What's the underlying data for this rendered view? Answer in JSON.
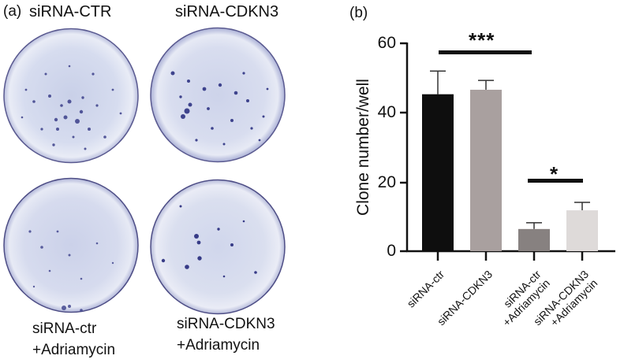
{
  "panel_a": {
    "label": "(a)",
    "plates": [
      {
        "label": "siRNA-CTR",
        "label_line2": "",
        "colony_density": "high"
      },
      {
        "label": "siRNA-CDKN3",
        "label_line2": "",
        "colony_density": "high"
      },
      {
        "label": "siRNA-ctr",
        "label_line2": "+Adriamycin",
        "colony_density": "low"
      },
      {
        "label": "siRNA-CDKN3",
        "label_line2": "+Adriamycin",
        "colony_density": "low"
      }
    ]
  },
  "panel_b": {
    "label": "(b)"
  },
  "chart_data": {
    "type": "bar",
    "title": "",
    "xlabel": "",
    "ylabel": "Clone number/well",
    "ylim": [
      0,
      60
    ],
    "yticks": [
      0,
      20,
      40,
      60
    ],
    "grid": false,
    "legend": "none",
    "categories": [
      "siRNA-ctr",
      "siRNA-CDKN3",
      "siRNA-ctr\n+Adriamycin",
      "siRNA-CDKN3\n+Adriamycin"
    ],
    "values": [
      45.3,
      46.6,
      6.4,
      11.8
    ],
    "error_upper": [
      52.0,
      49.3,
      8.2,
      14.1
    ],
    "bar_colors": [
      "#0e0e0e",
      "#a9a09f",
      "#878180",
      "#dedad9"
    ],
    "annotations": [
      {
        "text": "***",
        "from": 0,
        "to": 2,
        "y": 57
      },
      {
        "text": "*",
        "from": 2,
        "to": 3,
        "y": 20.5
      }
    ]
  }
}
